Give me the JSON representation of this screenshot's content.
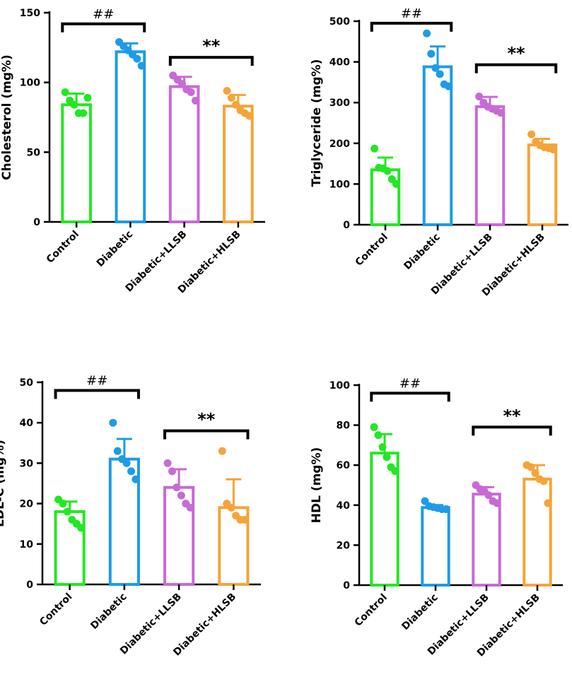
{
  "chart_data": [
    {
      "type": "bar",
      "ylabel": "Cholesterol (mg%)",
      "ylim": [
        0,
        150
      ],
      "yticks": [
        0,
        50,
        100,
        150
      ],
      "categories": [
        "Control",
        "Diabetic",
        "Diabetic+LLSB",
        "Diabetic+HLSB"
      ],
      "colors": [
        "#22e822",
        "#1e9be8",
        "#c86ad6",
        "#f5a43a"
      ],
      "means": [
        84,
        122,
        97,
        83
      ],
      "sd": [
        8,
        6,
        7,
        8
      ],
      "points": [
        [
          93,
          87,
          84,
          78,
          78,
          89
        ],
        [
          129,
          126,
          123,
          120,
          117,
          112
        ],
        [
          105,
          102,
          99,
          95,
          93,
          87
        ],
        [
          94,
          89,
          84,
          80,
          78,
          76
        ]
      ],
      "comparisons": [
        {
          "from": 0,
          "to": 1,
          "label": "##",
          "y": 142
        },
        {
          "from": 2,
          "to": 3,
          "label": "**",
          "y": 118
        }
      ]
    },
    {
      "type": "bar",
      "ylabel": "Triglyceride (mg%)",
      "ylim": [
        0,
        500
      ],
      "yticks": [
        0,
        100,
        200,
        300,
        400,
        500
      ],
      "categories": [
        "Control",
        "Diabetic",
        "Diabetic+LLSB",
        "Diabetic+HLSB"
      ],
      "colors": [
        "#22e822",
        "#1e9be8",
        "#c86ad6",
        "#f5a43a"
      ],
      "means": [
        135,
        388,
        290,
        196
      ],
      "sd": [
        30,
        50,
        24,
        15
      ],
      "points": [
        [
          187,
          140,
          138,
          132,
          112,
          100
        ],
        [
          470,
          420,
          385,
          370,
          345,
          340
        ],
        [
          315,
          300,
          290,
          285,
          280,
          275
        ],
        [
          222,
          204,
          195,
          190,
          188,
          185
        ]
      ],
      "comparisons": [
        {
          "from": 0,
          "to": 1,
          "label": "##",
          "y": 495
        },
        {
          "from": 2,
          "to": 3,
          "label": "**",
          "y": 393
        }
      ]
    },
    {
      "type": "bar",
      "ylabel": "LDL-C (mg%)",
      "ylim": [
        0,
        50
      ],
      "yticks": [
        0,
        10,
        20,
        30,
        40,
        50
      ],
      "categories": [
        "Control",
        "Diabetic",
        "Diabetic+LLSB",
        "Diabetic+HLSB"
      ],
      "colors": [
        "#22e822",
        "#1e9be8",
        "#c86ad6",
        "#f5a43a"
      ],
      "means": [
        18,
        31,
        24,
        19
      ],
      "sd": [
        2.5,
        5,
        4.5,
        7
      ],
      "points": [
        [
          21,
          20,
          18,
          16,
          15,
          14
        ],
        [
          40,
          33,
          31,
          30,
          28,
          26
        ],
        [
          30,
          28,
          24,
          22,
          20,
          19
        ],
        [
          33,
          20,
          19,
          17,
          16,
          16
        ]
      ],
      "comparisons": [
        {
          "from": 0,
          "to": 1,
          "label": "##",
          "y": 48
        },
        {
          "from": 2,
          "to": 3,
          "label": "**",
          "y": 38
        }
      ]
    },
    {
      "type": "bar",
      "ylabel": "HDL (mg%)",
      "ylim": [
        0,
        100
      ],
      "yticks": [
        0,
        20,
        40,
        60,
        80,
        100
      ],
      "categories": [
        "Control",
        "Diabetic",
        "Diabetic+LLSB",
        "Diabetic+HLSB"
      ],
      "colors": [
        "#22e822",
        "#1e9be8",
        "#c86ad6",
        "#f5a43a"
      ],
      "means": [
        66,
        38.8,
        45.5,
        53
      ],
      "sd": [
        9.5,
        1.2,
        3.5,
        7
      ],
      "points": [
        [
          79,
          75,
          69,
          64,
          59,
          57
        ],
        [
          42,
          39.5,
          39,
          38.5,
          38,
          38
        ],
        [
          50,
          48,
          47,
          45,
          42,
          41
        ],
        [
          60,
          59,
          56,
          53,
          52,
          41
        ]
      ],
      "comparisons": [
        {
          "from": 0,
          "to": 1,
          "label": "##",
          "y": 96
        },
        {
          "from": 2,
          "to": 3,
          "label": "**",
          "y": 79
        }
      ]
    }
  ]
}
